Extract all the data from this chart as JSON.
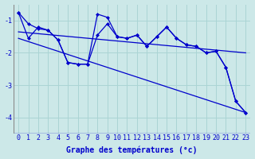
{
  "background_color": "#cce8e8",
  "grid_color": "#aad4d4",
  "line_color": "#0000cc",
  "xlabel": "Graphe des températures (°c)",
  "xlabel_fontsize": 7,
  "tick_fontsize": 6,
  "ylabel_ticks": [
    -4,
    -3,
    -2,
    -1
  ],
  "xlim": [
    -0.5,
    23.5
  ],
  "ylim": [
    -4.5,
    -0.5
  ],
  "series1_x": [
    0,
    1,
    2,
    3,
    4,
    5,
    6,
    7,
    8,
    9,
    10,
    11,
    12,
    13,
    14,
    15,
    16,
    17,
    18,
    19,
    20,
    21,
    22,
    23
  ],
  "series1_y": [
    -0.75,
    -1.1,
    -1.25,
    -1.3,
    -1.6,
    -2.3,
    -2.35,
    -2.35,
    -0.8,
    -0.9,
    -1.5,
    -1.55,
    -1.45,
    -1.8,
    -1.5,
    -1.2,
    -1.55,
    -1.75,
    -1.8,
    -2.0,
    -1.95,
    -2.45,
    -3.5,
    -3.85
  ],
  "series2_x": [
    0,
    1,
    2,
    3,
    4,
    5,
    6,
    7,
    8,
    9,
    10,
    11,
    12,
    13,
    14,
    15,
    16,
    17,
    18,
    19,
    20,
    21,
    22,
    23
  ],
  "series2_y": [
    -0.75,
    -1.55,
    -1.2,
    -1.3,
    -1.6,
    -2.3,
    -2.35,
    -2.35,
    -1.45,
    -1.1,
    -1.5,
    -1.55,
    -1.45,
    -1.8,
    -1.5,
    -1.2,
    -1.55,
    -1.75,
    -1.8,
    -2.0,
    -1.95,
    -2.45,
    -3.5,
    -3.85
  ],
  "series3_x": [
    0,
    23
  ],
  "series3_y": [
    -1.35,
    -2.0
  ],
  "series4_x": [
    0,
    23
  ],
  "series4_y": [
    -1.55,
    -3.85
  ]
}
